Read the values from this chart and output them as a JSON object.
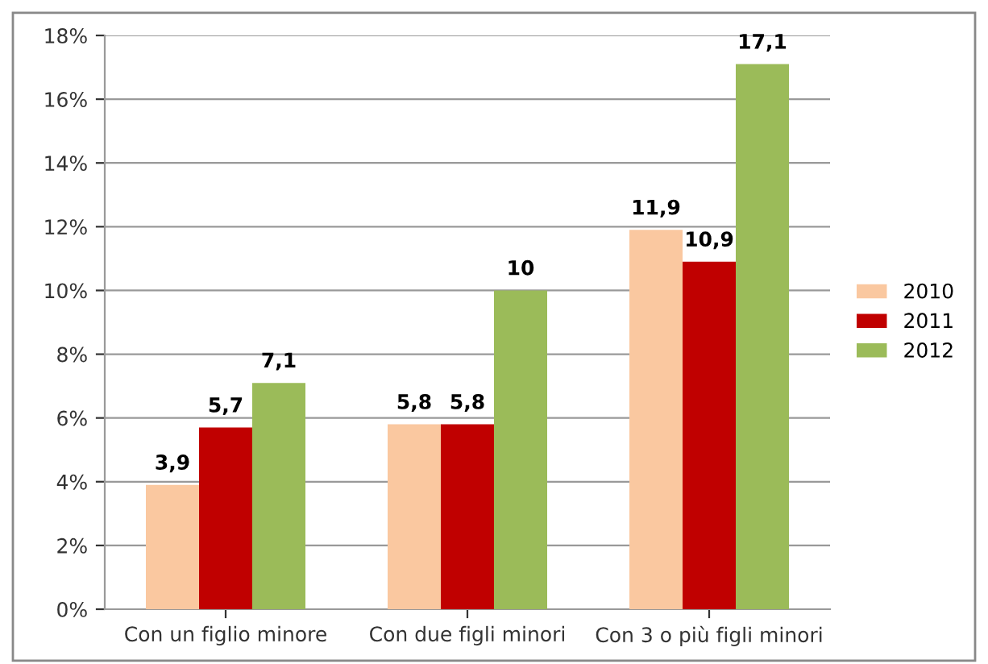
{
  "chart_data": {
    "type": "bar",
    "categories": [
      "Con un figlio minore",
      "Con due figli minori",
      "Con 3 o più figli minori"
    ],
    "series": [
      {
        "name": "2010",
        "color": "#fac8a0",
        "values": [
          3.9,
          5.8,
          11.9
        ],
        "value_labels": [
          "3,9",
          "5,8",
          "11,9"
        ]
      },
      {
        "name": "2011",
        "color": "#c00000",
        "values": [
          5.7,
          5.8,
          10.9
        ],
        "value_labels": [
          "5,7",
          "5,8",
          "10,9"
        ]
      },
      {
        "name": "2012",
        "color": "#9bbb59",
        "values": [
          7.1,
          10,
          17.1
        ],
        "value_labels": [
          "7,1",
          "10",
          "17,1"
        ]
      }
    ],
    "ylim": [
      0,
      18
    ],
    "yticks": [
      {
        "value": 0,
        "label": "0%"
      },
      {
        "value": 2,
        "label": "2%"
      },
      {
        "value": 4,
        "label": "4%"
      },
      {
        "value": 6,
        "label": "6%"
      },
      {
        "value": 8,
        "label": "8%"
      },
      {
        "value": 10,
        "label": "10%"
      },
      {
        "value": 12,
        "label": "12%"
      },
      {
        "value": 14,
        "label": "14%"
      },
      {
        "value": 16,
        "label": "16%"
      },
      {
        "value": 18,
        "label": "18%"
      }
    ],
    "grid": "y",
    "legend": "right"
  }
}
